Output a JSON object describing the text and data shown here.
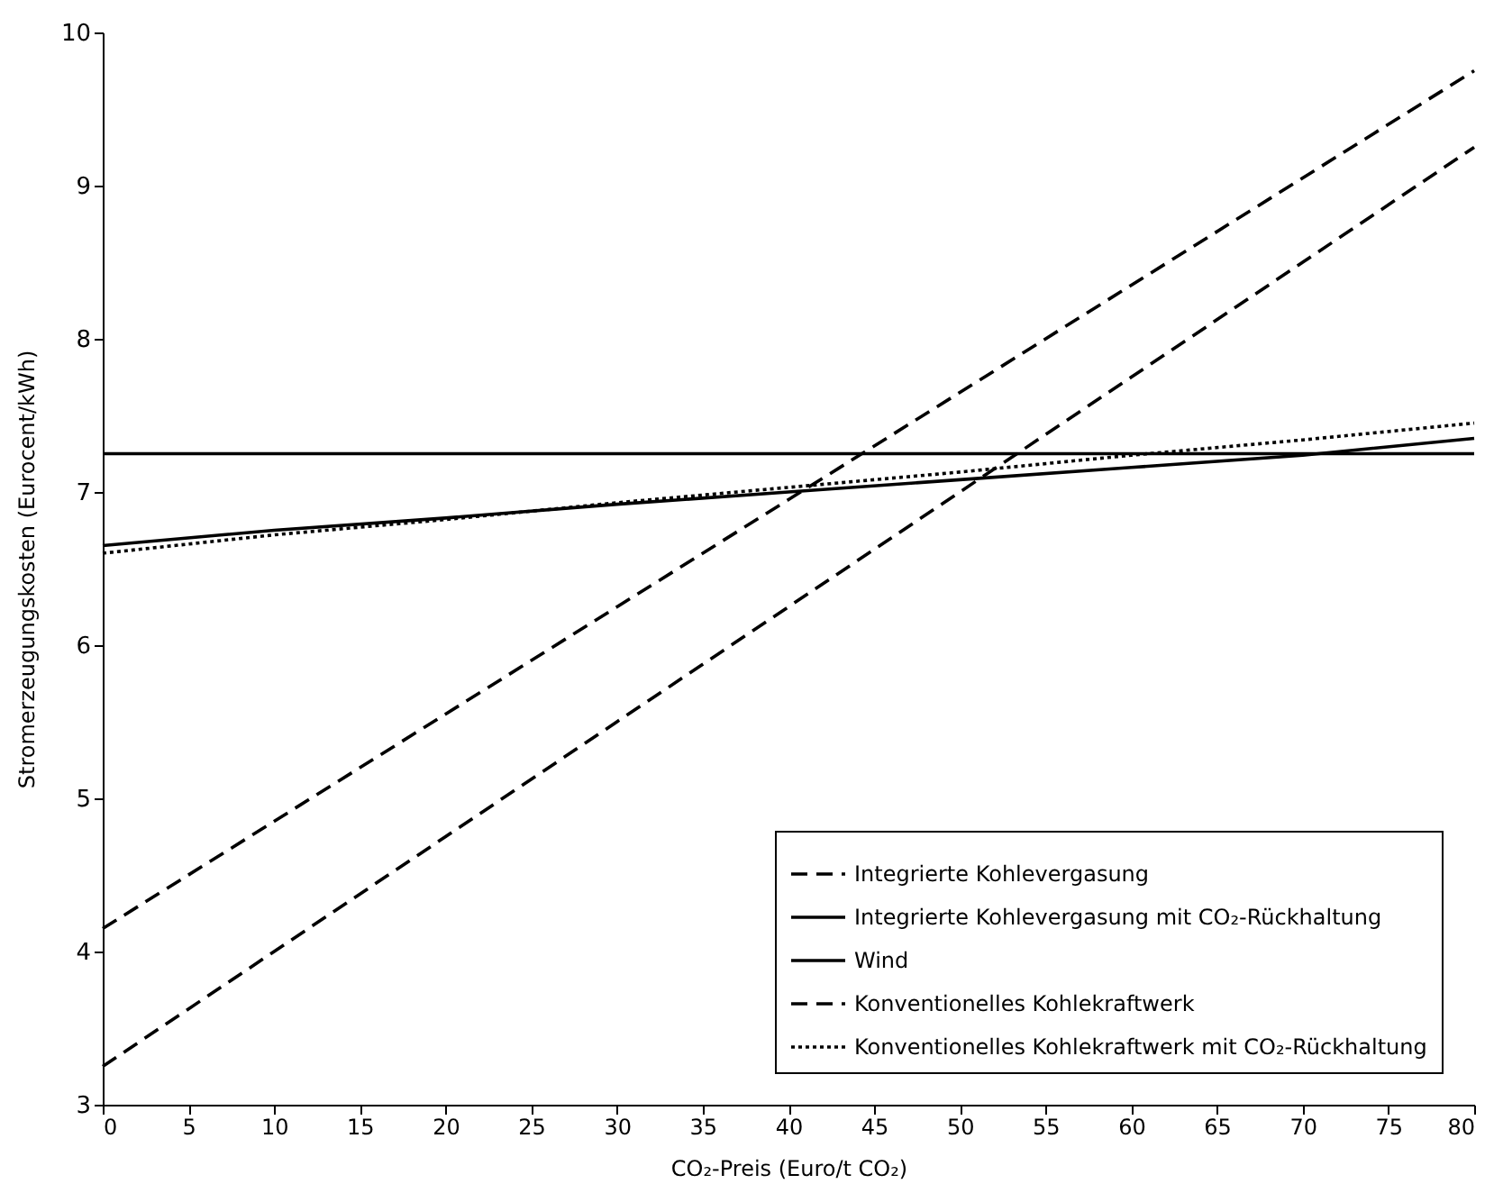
{
  "chart_data": {
    "type": "line",
    "xlabel": "CO₂-Preis (Euro/t CO₂)",
    "ylabel": "Stromerzeugungskosten (Eurocent/kWh)",
    "x": [
      0,
      10,
      20,
      30,
      40,
      50,
      60,
      70,
      80
    ],
    "series": [
      {
        "name": "Integrierte Kohlevergasung",
        "color": "#000000",
        "line_style": "dashed",
        "values": [
          4.15,
          4.85,
          5.55,
          6.25,
          6.95,
          7.65,
          8.35,
          9.05,
          9.75
        ]
      },
      {
        "name": "Integrierte Kohlevergasung mit CO₂-Rückhaltung",
        "color": "#000000",
        "line_style": "solid",
        "values": [
          6.65,
          6.75,
          6.83,
          6.92,
          7.0,
          7.08,
          7.16,
          7.24,
          7.35
        ]
      },
      {
        "name": "Wind",
        "color": "#000000",
        "line_style": "solid",
        "values": [
          7.25,
          7.25,
          7.25,
          7.25,
          7.25,
          7.25,
          7.25,
          7.25,
          7.25
        ]
      },
      {
        "name": "Konventionelles Kohlekraftwerk",
        "color": "#000000",
        "line_style": "dashed",
        "values": [
          3.25,
          4.0,
          4.75,
          5.5,
          6.25,
          7.0,
          7.75,
          8.5,
          9.25
        ]
      },
      {
        "name": "Konventionelles Kohlekraftwerk mit CO₂-Rückhaltung",
        "color": "#000000",
        "line_style": "dotted",
        "values": [
          6.6,
          6.72,
          6.82,
          6.93,
          7.03,
          7.13,
          7.24,
          7.34,
          7.45
        ]
      }
    ],
    "xlim": [
      0,
      80
    ],
    "xticks": [
      0,
      5,
      10,
      15,
      20,
      25,
      30,
      35,
      40,
      45,
      50,
      55,
      60,
      65,
      70,
      75,
      80
    ],
    "ylim": [
      3,
      10
    ],
    "yticks": [
      3,
      4,
      5,
      6,
      7,
      8,
      9,
      10
    ],
    "grid": false,
    "legend": "bottom right",
    "marker": "none"
  }
}
